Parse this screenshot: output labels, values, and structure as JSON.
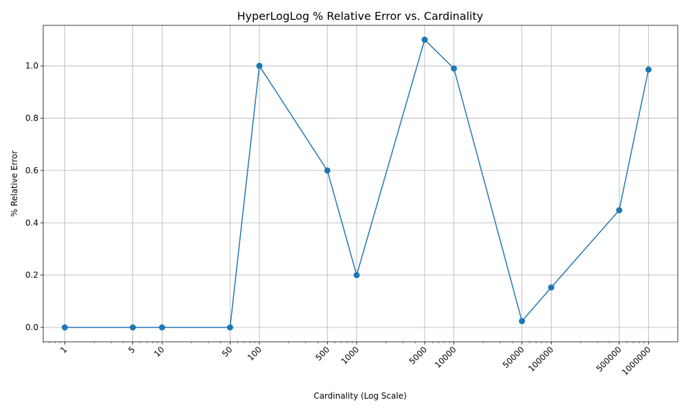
{
  "chart_data": {
    "type": "line",
    "title": "HyperLogLog % Relative Error vs. Cardinality",
    "xlabel": "Cardinality (Log Scale)",
    "ylabel": "% Relative Error",
    "x_scale": "log",
    "xlim": [
      0.6,
      2000000
    ],
    "ylim": [
      -0.055,
      1.155
    ],
    "grid": true,
    "series_color": "#1f77b4",
    "x": [
      1,
      5,
      10,
      50,
      100,
      500,
      1000,
      5000,
      10000,
      50000,
      100000,
      500000,
      1000000
    ],
    "y": [
      0.0,
      0.0,
      0.0,
      0.0,
      1.0,
      0.6,
      0.2,
      1.1,
      0.99,
      0.024,
      0.153,
      0.448,
      0.986
    ],
    "x_tick_labels": [
      "1",
      "5",
      "10",
      "50",
      "100",
      "500",
      "1000",
      "5000",
      "10000",
      "50000",
      "100000",
      "500000",
      "1000000"
    ],
    "y_ticks": [
      0.0,
      0.2,
      0.4,
      0.6,
      0.8,
      1.0
    ],
    "y_tick_labels": [
      "0.0",
      "0.2",
      "0.4",
      "0.6",
      "0.8",
      "1.0"
    ]
  }
}
